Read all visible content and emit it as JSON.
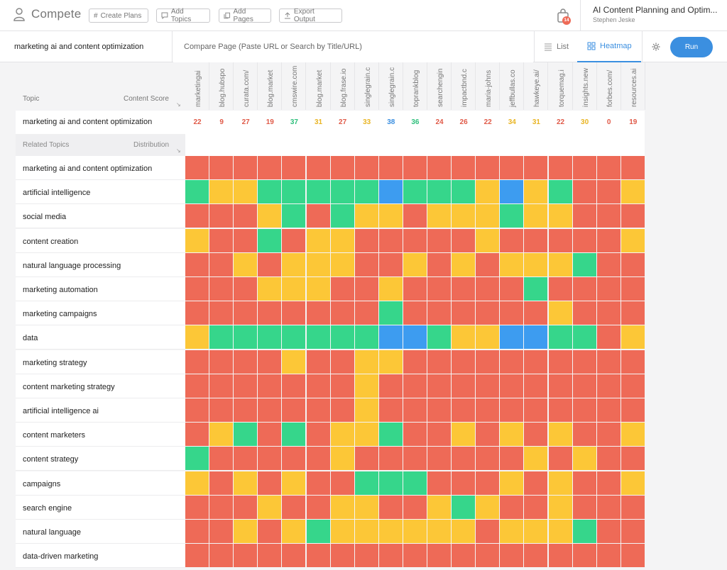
{
  "app": {
    "name": "Compete"
  },
  "toolbar": {
    "buttons": [
      "Create Plans",
      "Add Topics",
      "Add Pages",
      "Export Output"
    ],
    "notifications": "14"
  },
  "project": {
    "title": "AI Content Planning and Optim...",
    "user": "Stephen Jeske"
  },
  "search": {
    "query": "marketing ai and content optimization",
    "compare_placeholder": "Compare Page (Paste URL or Search by Title/URL)"
  },
  "view_tabs": {
    "list": "List",
    "heatmap": "Heatmap",
    "active": "heatmap"
  },
  "run_label": "Run",
  "table": {
    "topic_header": "Topic",
    "score_header": "Content Score",
    "related_header": "Related Topics",
    "distribution_header": "Distribution",
    "main_topic": "marketing ai and content optimization",
    "columns": [
      "marketingai",
      "blog.hubspo",
      "curata.com/",
      "blog.market",
      "cmswire.com",
      "blog.market",
      "blog.frase.io",
      "singlegrain.c",
      "singlegrain.c",
      "toprankblog",
      "searchengin",
      "impactbnd.c",
      "maria-johns",
      "jeffbullas.co",
      "hawkeye.ai/",
      "torquemag.i",
      "insights.new",
      "forbes.com/",
      "resources.ai"
    ],
    "scores": [
      22,
      9,
      27,
      19,
      37,
      31,
      27,
      33,
      38,
      36,
      24,
      26,
      22,
      34,
      31,
      22,
      30,
      0,
      19
    ],
    "score_colors": [
      "r",
      "r",
      "r",
      "r",
      "g",
      "y",
      "r",
      "y",
      "b",
      "g",
      "r",
      "r",
      "r",
      "y",
      "y",
      "r",
      "y",
      "r",
      "r"
    ],
    "legend_colors": {
      "r": "#ee6a57",
      "y": "#fcc737",
      "g": "#36d68b",
      "b": "#3d9cf0"
    },
    "rows": [
      {
        "topic": "marketing ai and content optimization",
        "cells": "rrrrrrrrrrrrrrrrrrr"
      },
      {
        "topic": "artificial intelligence",
        "cells": "gyygggggbgggybygrry"
      },
      {
        "topic": "social media",
        "cells": "rrrygrgyyryyygyyrrr"
      },
      {
        "topic": "content creation",
        "cells": "yrrgryyrrrrryrrrrry"
      },
      {
        "topic": "natural language processing",
        "cells": "rryryyyrryryryyygrr"
      },
      {
        "topic": "marketing automation",
        "cells": "rrryyyrryrrrrrgrrrr"
      },
      {
        "topic": "marketing campaigns",
        "cells": "rrrrrrrrgrrrrrryrrr"
      },
      {
        "topic": "data",
        "cells": "ygggggggbbgyybbggry"
      },
      {
        "topic": "marketing strategy",
        "cells": "rrrryrryyrrrrrrrrrr"
      },
      {
        "topic": "content marketing strategy",
        "cells": "rrrrrrryrrrrrrrrrrr"
      },
      {
        "topic": "artificial intelligence ai",
        "cells": "rrrrrrryrrrrrrrrrrr"
      },
      {
        "topic": "content marketers",
        "cells": "rygrgryygrryryryrry"
      },
      {
        "topic": "content strategy",
        "cells": "grrrrryrrrrrrryryrr"
      },
      {
        "topic": "campaigns",
        "cells": "yryryrrgggrrryryrry"
      },
      {
        "topic": "search engine",
        "cells": "rrryrryyrrygyrryrrr"
      },
      {
        "topic": "natural language",
        "cells": "rryrygyyyyyyryyygrr"
      },
      {
        "topic": "data-driven marketing",
        "cells": "rrrrrrrrrrrrrrrrrrr"
      }
    ]
  }
}
